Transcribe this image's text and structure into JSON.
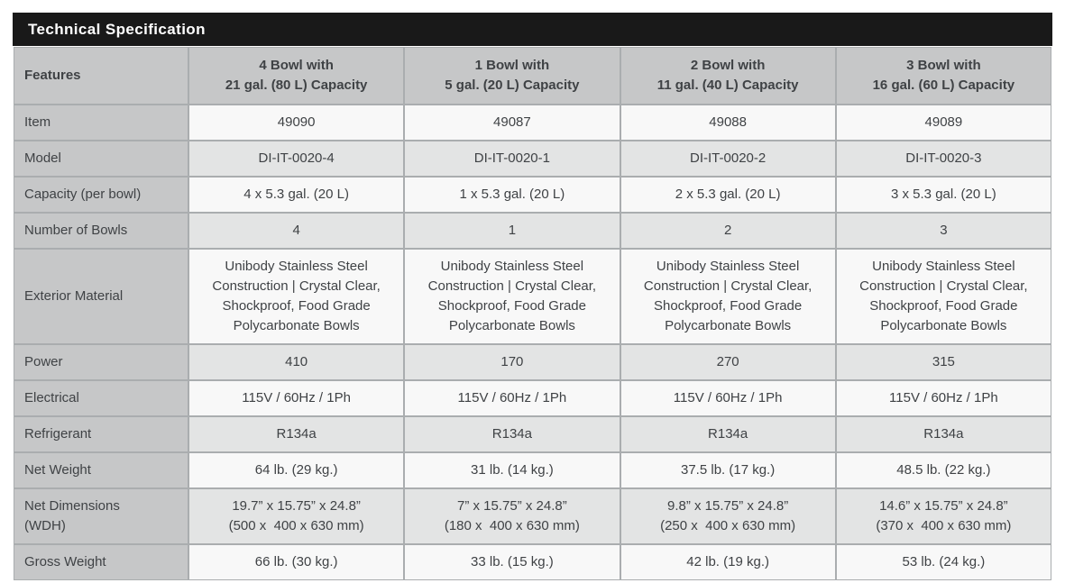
{
  "title": "Technical Specification",
  "colors": {
    "title_bar_bg": "#191919",
    "title_text": "#ffffff",
    "header_cell_bg": "#c6c7c8",
    "row_light_bg": "#f8f8f8",
    "row_dark_bg": "#e3e4e4",
    "cell_outline": "#aaadaf",
    "body_text": "#3f4245"
  },
  "table": {
    "features_header": "Features",
    "columns": [
      "4 Bowl with\n21 gal. (80 L) Capacity",
      "1 Bowl with\n5 gal. (20 L) Capacity",
      "2 Bowl with\n11 gal. (40 L) Capacity",
      "3 Bowl with\n16 gal. (60 L) Capacity"
    ],
    "rows": [
      {
        "feature": "Item",
        "values": [
          "49090",
          "49087",
          "49088",
          "49089"
        ]
      },
      {
        "feature": "Model",
        "values": [
          "DI-IT-0020-4",
          "DI-IT-0020-1",
          "DI-IT-0020-2",
          "DI-IT-0020-3"
        ]
      },
      {
        "feature": "Capacity (per bowl)",
        "values": [
          "4 x 5.3 gal. (20 L)",
          "1 x 5.3 gal. (20 L)",
          "2 x 5.3 gal. (20 L)",
          "3 x 5.3 gal. (20 L)"
        ]
      },
      {
        "feature": "Number of Bowls",
        "values": [
          "4",
          "1",
          "2",
          "3"
        ]
      },
      {
        "feature": "Exterior Material",
        "values": [
          "Unibody Stainless Steel Construction | Crystal Clear, Shockproof, Food Grade Polycarbonate Bowls",
          "Unibody Stainless Steel Construction | Crystal Clear, Shockproof, Food Grade Polycarbonate Bowls",
          "Unibody Stainless Steel Construction | Crystal Clear, Shockproof, Food Grade Polycarbonate Bowls",
          "Unibody Stainless Steel Construction | Crystal Clear, Shockproof, Food Grade Polycarbonate Bowls"
        ]
      },
      {
        "feature": "Power",
        "values": [
          "410",
          "170",
          "270",
          "315"
        ]
      },
      {
        "feature": "Electrical",
        "values": [
          "115V / 60Hz / 1Ph",
          "115V / 60Hz / 1Ph",
          "115V / 60Hz / 1Ph",
          "115V / 60Hz / 1Ph"
        ]
      },
      {
        "feature": "Refrigerant",
        "values": [
          "R134a",
          "R134a",
          "R134a",
          "R134a"
        ]
      },
      {
        "feature": "Net Weight",
        "values": [
          "64 lb. (29 kg.)",
          "31 lb. (14 kg.)",
          "37.5 lb. (17 kg.)",
          "48.5 lb. (22 kg.)"
        ]
      },
      {
        "feature": "Net Dimensions\n(WDH)",
        "values": [
          "19.7” x 15.75” x 24.8”\n(500 x  400 x 630 mm)",
          "7” x 15.75” x 24.8”\n(180 x  400 x 630 mm)",
          "9.8” x 15.75” x 24.8”\n(250 x  400 x 630 mm)",
          "14.6” x 15.75” x 24.8”\n(370 x  400 x 630 mm)"
        ]
      },
      {
        "feature": "Gross Weight",
        "values": [
          "66 lb. (30 kg.)",
          "33 lb. (15 kg.)",
          "42 lb. (19 kg.)",
          "53 lb. (24 kg.)"
        ]
      }
    ]
  }
}
